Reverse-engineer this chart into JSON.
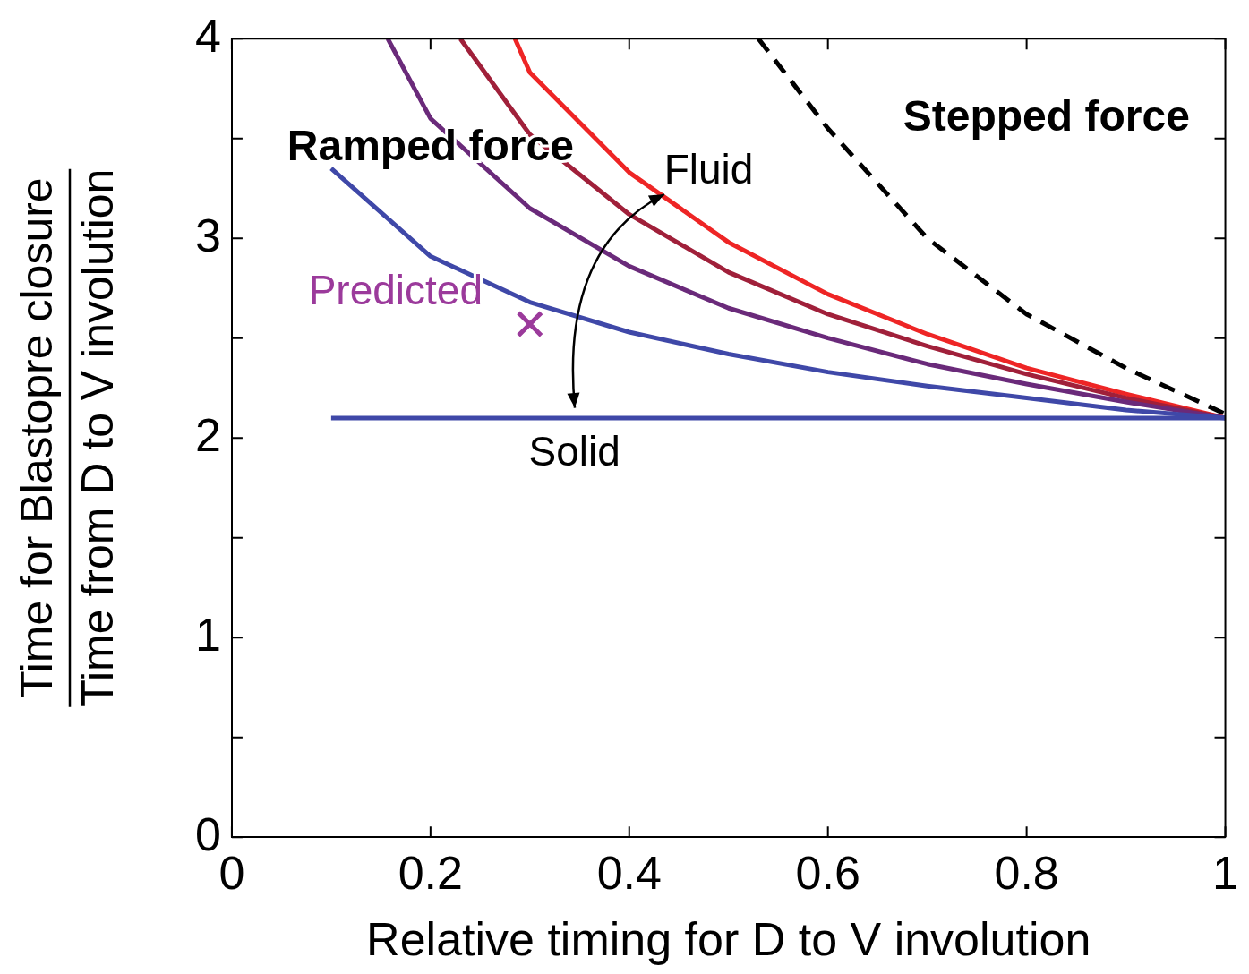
{
  "chart_data": {
    "type": "line",
    "xlabel": "Relative timing for D to V involution",
    "ylabel": "Time for Blastopre closure\nTime from D to V involution",
    "xlim": [
      0,
      1
    ],
    "ylim": [
      0,
      4
    ],
    "xticks": [
      0,
      0.2,
      0.4,
      0.6,
      0.8,
      1
    ],
    "yticks": [
      0,
      {
        "value": 0.5,
        "label": null
      },
      1,
      {
        "value": 1.5,
        "label": null
      },
      2,
      {
        "value": 2.5,
        "label": null
      },
      3,
      {
        "value": 3.5,
        "label": null
      },
      4
    ],
    "grid": false,
    "legend": false,
    "marker": "none",
    "series": [
      {
        "color": "#3f48a8",
        "x": [
          0.1,
          1
        ],
        "values": [
          2.1,
          2.1
        ]
      },
      {
        "color": "#3f48a8",
        "x": [
          0.1,
          0.2,
          0.3,
          0.4,
          0.5,
          0.6,
          0.7,
          0.8,
          0.9,
          1
        ],
        "values": [
          3.35,
          2.91,
          2.68,
          2.53,
          2.42,
          2.33,
          2.26,
          2.2,
          2.14,
          2.1
        ]
      },
      {
        "color": "#6a2a7a",
        "x": [
          0.157,
          0.2,
          0.3,
          0.4,
          0.5,
          0.6,
          0.7,
          0.8,
          0.9,
          1
        ],
        "values": [
          4,
          3.6,
          3.15,
          2.86,
          2.65,
          2.5,
          2.37,
          2.27,
          2.18,
          2.1
        ]
      },
      {
        "color": "#a0203a",
        "x": [
          0.23,
          0.3,
          0.4,
          0.5,
          0.6,
          0.7,
          0.8,
          0.9,
          1
        ],
        "values": [
          4,
          3.52,
          3.12,
          2.83,
          2.62,
          2.46,
          2.32,
          2.2,
          2.1
        ]
      },
      {
        "color": "#ee2525",
        "x": [
          0.285,
          0.3,
          0.4,
          0.5,
          0.6,
          0.7,
          0.8,
          0.9,
          1
        ],
        "values": [
          4,
          3.83,
          3.33,
          2.98,
          2.72,
          2.52,
          2.35,
          2.22,
          2.1
        ]
      },
      {
        "color": "#000000",
        "line_style": "dashed",
        "x": [
          0.53,
          0.6,
          0.7,
          0.8,
          0.9,
          1
        ],
        "values": [
          4,
          3.55,
          3.0,
          2.62,
          2.35,
          2.12
        ]
      },
      {
        "type": "scatter",
        "marker": "cross",
        "color": "#9b3a9b",
        "x": [
          0.3
        ],
        "values": [
          2.57
        ]
      }
    ],
    "annotations": [
      "Ramped force",
      "Stepped force",
      "Fluid",
      {
        "text": "Solid",
        "x": 0.345,
        "y": 2.1
      },
      {
        "text": "Predicted",
        "x": 0.3,
        "y": 2.57
      }
    ]
  }
}
